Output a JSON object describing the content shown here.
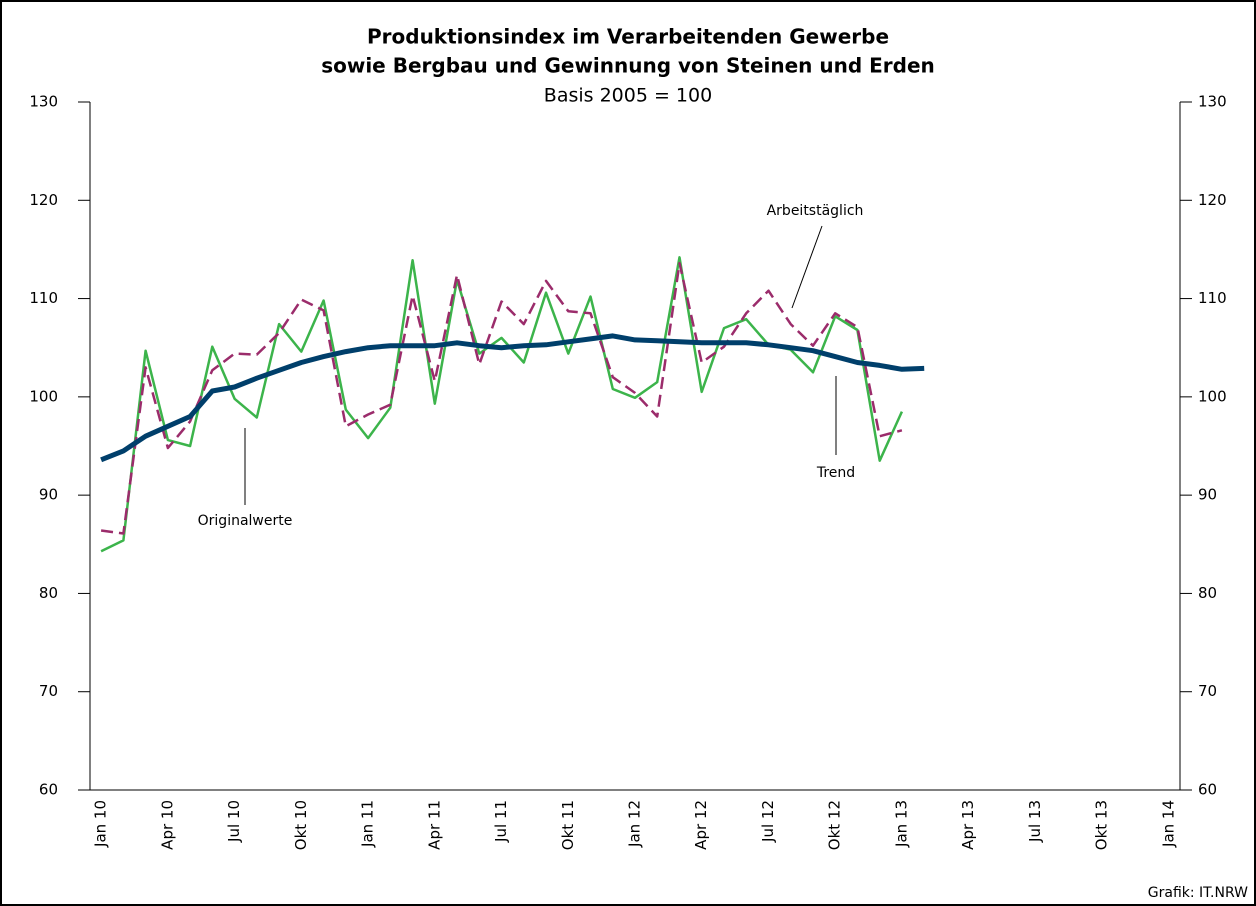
{
  "chart_data": {
    "type": "line",
    "title": [
      "Produktionsindex im Verarbeitenden Gewerbe",
      "sowie Bergbau und Gewinnung von Steinen und Erden"
    ],
    "subtitle": "Basis 2005 = 100",
    "categories": [
      "Jan 10",
      null,
      null,
      "Apr 10",
      null,
      null,
      "Jul 10",
      null,
      null,
      "Okt 10",
      null,
      null,
      "Jan 11",
      null,
      null,
      "Apr 11",
      null,
      null,
      "Jul 11",
      null,
      null,
      "Okt 11",
      null,
      null,
      "Jan 12",
      null,
      null,
      "Apr 12",
      null,
      null,
      "Jul 12",
      null,
      null,
      "Okt 12",
      null,
      null,
      "Jan 13",
      null,
      null,
      "Apr 13",
      null,
      null,
      "Jul 13",
      null,
      null,
      "Okt 13",
      null,
      null,
      "Jan 14"
    ],
    "series": [
      {
        "name": "Originalwerte",
        "color": "#3cb44b",
        "width": 2.5,
        "dashed": false,
        "values": [
          84.3,
          85.4,
          104.7,
          95.6,
          95.0,
          105.1,
          99.8,
          97.9,
          107.4,
          104.6,
          109.8,
          98.7,
          95.8,
          98.9,
          113.9,
          99.3,
          111.9,
          104.4,
          106.0,
          103.5,
          110.6,
          104.4,
          110.2,
          100.8,
          99.9,
          101.5,
          114.2,
          100.5,
          107.0,
          107.9,
          105.3,
          104.8,
          102.5,
          108.2,
          106.8,
          93.5,
          98.5,
          null,
          null,
          null,
          null,
          null,
          null,
          null,
          null,
          null,
          null,
          null,
          null
        ]
      },
      {
        "name": "Arbeitstäglich",
        "color": "#9b2c6b",
        "width": 2.5,
        "dashed": true,
        "values": [
          86.4,
          86.1,
          103.0,
          94.8,
          97.5,
          102.7,
          104.4,
          104.3,
          106.5,
          109.9,
          108.8,
          97.0,
          98.2,
          99.2,
          110.3,
          101.6,
          112.4,
          103.3,
          109.7,
          107.4,
          111.8,
          108.7,
          108.5,
          102.0,
          100.4,
          98.0,
          113.6,
          103.5,
          105.1,
          108.5,
          110.8,
          107.4,
          105.2,
          108.5,
          107.1,
          96.0,
          96.6,
          null,
          null,
          null,
          null,
          null,
          null,
          null,
          null,
          null,
          null,
          null,
          null
        ]
      },
      {
        "name": "Trend",
        "color": "#003f6b",
        "width": 5,
        "dashed": false,
        "values": [
          93.6,
          94.5,
          96.0,
          97.0,
          98.0,
          100.6,
          101.0,
          101.9,
          102.7,
          103.5,
          104.1,
          104.6,
          105.0,
          105.2,
          105.2,
          105.2,
          105.5,
          105.2,
          105.0,
          105.2,
          105.3,
          105.6,
          105.9,
          106.2,
          105.8,
          105.7,
          105.6,
          105.5,
          105.5,
          105.5,
          105.3,
          105.0,
          104.7,
          104.1,
          103.5,
          103.2,
          102.8,
          102.9,
          null,
          null,
          null,
          null,
          null,
          null,
          null,
          null,
          null,
          null,
          null
        ]
      }
    ],
    "ylim": [
      60,
      130
    ],
    "yticks": [
      60,
      70,
      80,
      90,
      100,
      110,
      120,
      130
    ],
    "y2lim": [
      60,
      130
    ],
    "y2ticks": [
      60,
      70,
      80,
      90,
      100,
      110,
      120,
      130
    ],
    "grid": false,
    "source": "Grafik: IT.NRW"
  }
}
